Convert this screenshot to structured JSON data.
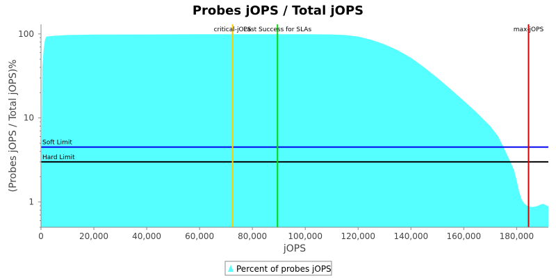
{
  "chart_data": {
    "type": "area",
    "title": "Probes jOPS / Total jOPS",
    "xlabel": "jOPS",
    "ylabel": "(Probes jOPS / Total jOPS)%",
    "xlim": [
      0,
      192000
    ],
    "ylim": [
      0.5,
      130
    ],
    "y_scale": "log",
    "grid": false,
    "legend_position": "bottom-center",
    "x_ticks": [
      {
        "value": 0,
        "label": "0"
      },
      {
        "value": 20000,
        "label": "20,000"
      },
      {
        "value": 40000,
        "label": "40,000"
      },
      {
        "value": 60000,
        "label": "60,000"
      },
      {
        "value": 80000,
        "label": "80,000"
      },
      {
        "value": 100000,
        "label": "100,000"
      },
      {
        "value": 120000,
        "label": "120,000"
      },
      {
        "value": 140000,
        "label": "140,000"
      },
      {
        "value": 160000,
        "label": "160,000"
      },
      {
        "value": 180000,
        "label": "180,000"
      }
    ],
    "y_ticks": [
      {
        "value": 1,
        "label": "1"
      },
      {
        "value": 10,
        "label": "10"
      },
      {
        "value": 100,
        "label": "100"
      }
    ],
    "series": [
      {
        "name": "Percent of probes jOPS",
        "color": "#55ffff",
        "x": [
          0,
          500,
          1000,
          1500,
          2000,
          5000,
          10000,
          20000,
          40000,
          60000,
          80000,
          100000,
          110000,
          115000,
          120000,
          125000,
          130000,
          135000,
          140000,
          145000,
          150000,
          155000,
          160000,
          165000,
          170000,
          173000,
          175000,
          177000,
          179000,
          180000,
          181000,
          182000,
          183000,
          184000,
          185000,
          186000,
          187000,
          188000,
          189000,
          190000,
          191000,
          192000
        ],
        "y": [
          0.5,
          40,
          65,
          85,
          93,
          95,
          97,
          98,
          98.5,
          99,
          99,
          99,
          98.5,
          97,
          93,
          85,
          75,
          64,
          52,
          40,
          30,
          22,
          16,
          11.5,
          8,
          6,
          4.5,
          3.3,
          2.4,
          1.8,
          1.3,
          1.05,
          0.95,
          0.9,
          0.88,
          0.87,
          0.88,
          0.9,
          0.93,
          0.95,
          0.92,
          0.88
        ]
      }
    ],
    "vertical_markers": [
      {
        "label": "critical-jOPS",
        "x": 72500,
        "color": "#ffcc00"
      },
      {
        "label": "Last Success for SLAs",
        "x": 89500,
        "color": "#00dd00"
      },
      {
        "label": "max-jOPS",
        "x": 184500,
        "color": "#dd0000"
      }
    ],
    "horizontal_markers": [
      {
        "label": "Soft Limit",
        "y": 4.5,
        "color": "#0000ee"
      },
      {
        "label": "Hard Limit",
        "y": 3.0,
        "color": "#000000"
      }
    ]
  }
}
